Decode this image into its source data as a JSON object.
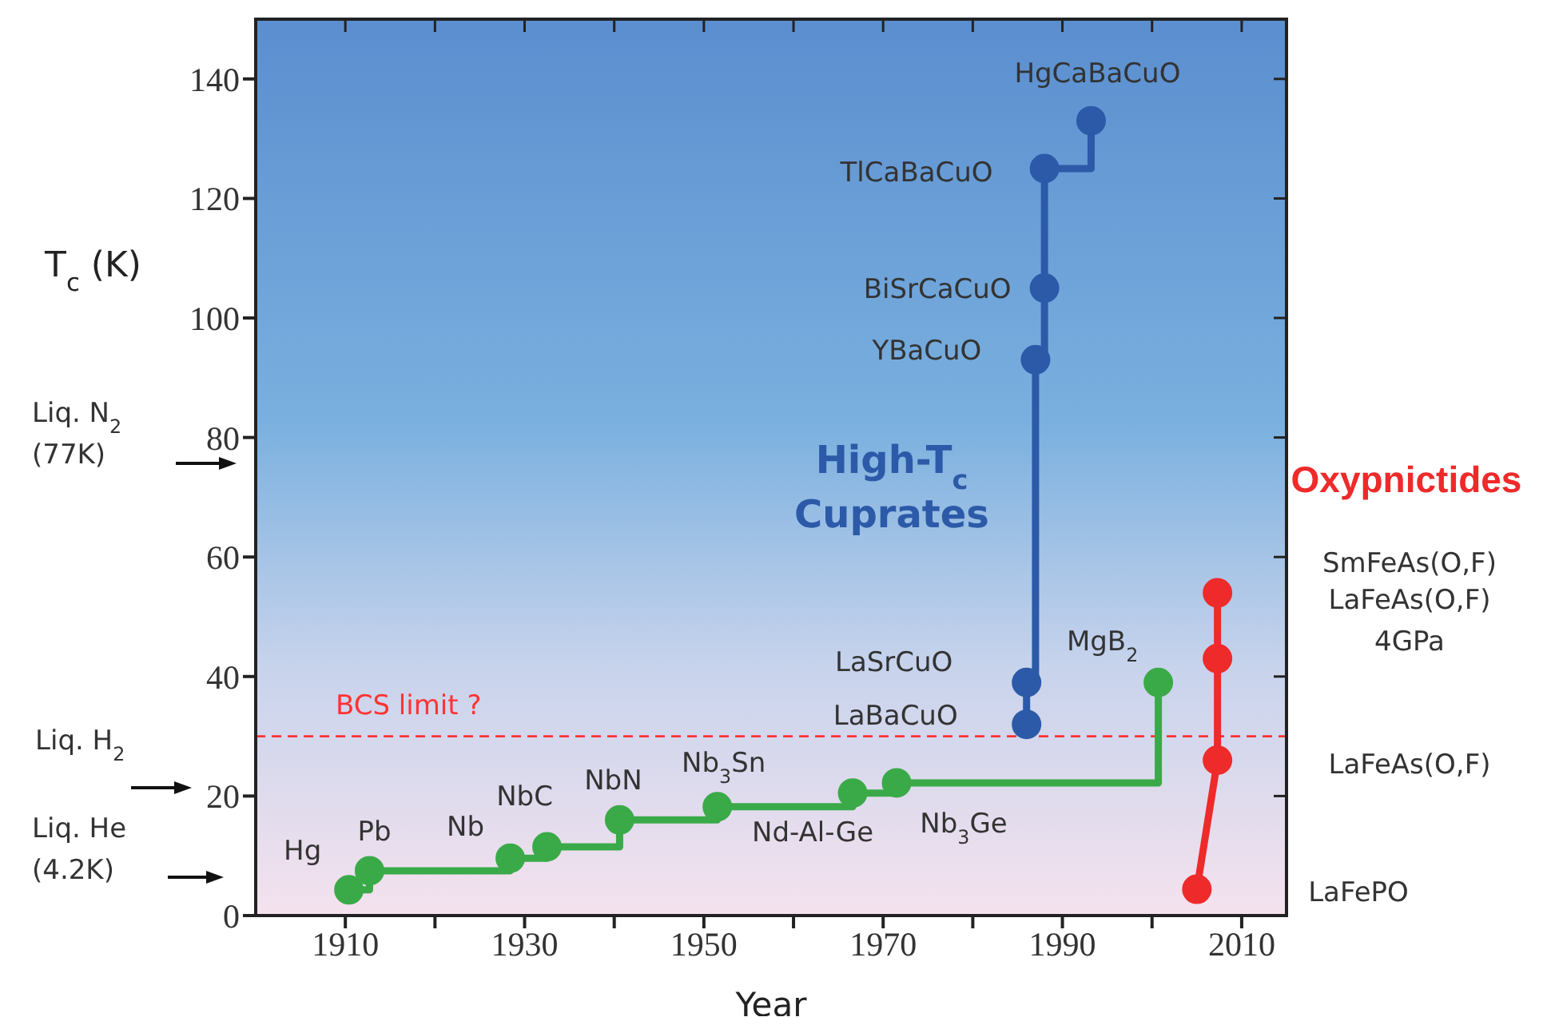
{
  "chart_data": {
    "type": "step",
    "xlabel": "Year",
    "ylabel": "T$_{c}$ (K)",
    "xlim": [
      1900,
      2015
    ],
    "xticks": [
      1910,
      {
        "value": 1920,
        "label": null
      },
      1930,
      {
        "value": 1940,
        "label": null
      },
      1950,
      {
        "value": 1960,
        "label": null
      },
      1970,
      {
        "value": 1980,
        "label": null
      },
      1990,
      {
        "value": 2000,
        "label": null
      },
      2010
    ],
    "ylim": [
      0,
      150
    ],
    "yticks": [
      0,
      20,
      40,
      60,
      80,
      100,
      120,
      140
    ],
    "marker": "circle",
    "grid": false,
    "series": [
      {
        "color": "#3aaa48",
        "x": [
          1910.4,
          1912.7,
          1928.4,
          1932.5,
          1940.6,
          1951.5,
          1966.6,
          1971.5,
          2000.7
        ],
        "values": [
          4.3,
          7.5,
          9.6,
          11.5,
          16,
          18.2,
          20.5,
          22.2,
          39
        ]
      },
      {
        "type": "step",
        "name": "High-T$_{c}$ Cuprates",
        "color": "#2c5aa8",
        "x": [
          1986,
          1986,
          1987,
          1988,
          1988,
          1993.2
        ],
        "values": [
          32,
          39,
          93,
          105,
          125,
          133
        ]
      },
      {
        "type": "line",
        "name": "Oxypnictides",
        "color": "#ee2a2a",
        "x": [
          2005,
          2007.3,
          2007.3,
          2007.3
        ],
        "values": [
          4.4,
          26,
          43,
          54
        ]
      }
    ],
    "ref_lines": [
      {
        "axis": "y",
        "value": 30,
        "label": "BCS limit ?",
        "color": "#ff3333",
        "line_style": "dashed"
      }
    ],
    "annotations": [
      {
        "text": "Hg",
        "x": 1910.4,
        "y": 4.3
      },
      {
        "text": "Pb",
        "x": 1912.7,
        "y": 7.5
      },
      {
        "text": "Nb",
        "x": 1928.4,
        "y": 9.6
      },
      {
        "text": "NbC",
        "x": 1932.5,
        "y": 11.5
      },
      {
        "text": "NbN",
        "x": 1940.6,
        "y": 16
      },
      {
        "text": "Nb$_{3}$Sn",
        "x": 1951.5,
        "y": 18.2
      },
      {
        "text": "Nd-Al-Ge",
        "x": 1966.6,
        "y": 20.5
      },
      {
        "text": "Nb$_{3}$Ge",
        "x": 1971.5,
        "y": 22.2
      },
      {
        "text": "MgB$_{2}$",
        "x": 2000.7,
        "y": 39
      },
      {
        "text": "LaBaCuO",
        "x": 1986,
        "y": 32
      },
      {
        "text": "LaSrCuO",
        "x": 1986,
        "y": 39
      },
      {
        "text": "YBaCuO",
        "x": 1987,
        "y": 93
      },
      {
        "text": "BiSrCaCuO",
        "x": 1988,
        "y": 105
      },
      {
        "text": "TlCaBaCuO",
        "x": 1988,
        "y": 125
      },
      {
        "text": "HgCaBaCuO",
        "x": 1993.2,
        "y": 133
      },
      "LaFePO",
      "LaFeAs(O,F)",
      "LaFeAs(O,F) 4GPa",
      "SmFeAs(O,F)",
      "Liq. N$_{2}$ (77K)",
      "Liq. H$_{2}$",
      "Liq. He (4.2K)"
    ]
  }
}
